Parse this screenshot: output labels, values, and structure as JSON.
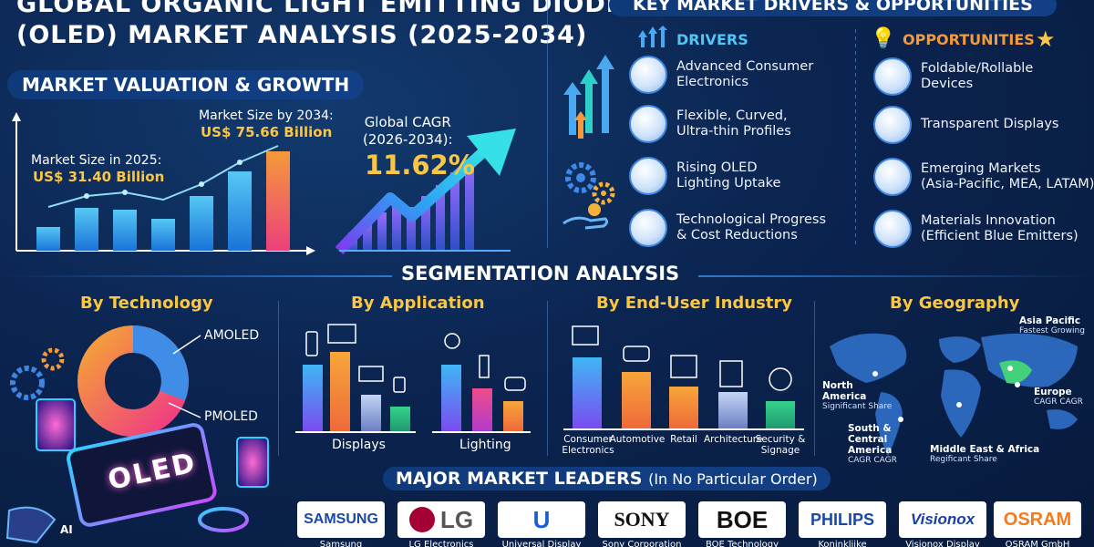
{
  "header": {
    "title_line1": "GLOBAL ORGANIC LIGHT EMITTING DIODE",
    "title_line2": "(OLED) MARKET ANALYSIS (2025-2034)"
  },
  "valuation": {
    "section_title": "MARKET VALUATION & GROWTH",
    "size_2025_label": "Market Size in 2025:",
    "size_2025_value": "US$ 31.40 Billion",
    "size_2034_label": "Market Size by 2034:",
    "size_2034_value": "US$ 75.66 Billion",
    "cagr_label_line1": "Global CAGR",
    "cagr_label_line2": "(2026-2034):",
    "cagr_value": "11.62%"
  },
  "drivers_section": {
    "section_title": "KEY MARKET DRIVERS & OPPORTUNITIES",
    "drivers_heading": "DRIVERS",
    "opportunities_heading": "OPPORTUNITIES",
    "drivers": [
      {
        "line1": "Advanced Consumer",
        "line2": "Electronics",
        "icon": "monitor-icon"
      },
      {
        "line1": "Flexible, Curved,",
        "line2": "Ultra-thin Profiles",
        "icon": "curved-screen-icon"
      },
      {
        "line1": "Rising OLED",
        "line2": "Lighting Uptake",
        "icon": "lightbulb-icon"
      },
      {
        "line1": "Technological Progress",
        "line2": "& Cost Reductions",
        "icon": "gear-hand-icon"
      }
    ],
    "opportunities": [
      {
        "line1": "Foldable/Rollable",
        "line2": "Devices",
        "icon": "foldable-icon"
      },
      {
        "line1": "Transparent Displays",
        "line2": "",
        "icon": "transparent-display-icon"
      },
      {
        "line1": "Emerging Markets",
        "line2": "(Asia-Pacific, MEA, LATAM)",
        "icon": "globe-icon"
      },
      {
        "line1": "Materials Innovation",
        "line2": "(Efficient Blue Emitters)",
        "icon": "molecule-box-icon"
      }
    ]
  },
  "segmentation": {
    "section_title": "SEGMENTATION ANALYSIS",
    "technology": {
      "heading": "By Technology",
      "labels": [
        "AMOLED",
        "PMOLED"
      ]
    },
    "application": {
      "heading": "By Application",
      "groups": [
        "Displays",
        "Lighting"
      ]
    },
    "end_user": {
      "heading": "By End-User Industry",
      "categories": [
        "Consumer\nElectronics",
        "Automotive",
        "Retail",
        "Architecture",
        "Security &\nSignage"
      ]
    },
    "geography": {
      "heading": "By Geography",
      "regions": [
        {
          "name": "Asia Pacific",
          "sub": "Fastest Growing"
        },
        {
          "name": "North\nAmerica",
          "sub": "Significant Share"
        },
        {
          "name": "Europe",
          "sub": "CAGR CAGR"
        },
        {
          "name": "South &\nCentral\nAmerica",
          "sub": "CAGR CAGR"
        },
        {
          "name": "Middle East & Africa",
          "sub": "Regificant Share"
        }
      ]
    }
  },
  "oled_label": "OLED",
  "ai_label": "AI",
  "leaders": {
    "title": "MAJOR MARKET LEADERS",
    "subtitle": "(In No Particular Order)",
    "companies": [
      {
        "logo": "SAMSUNG",
        "name": "Samsung"
      },
      {
        "logo": "LG",
        "name": "LG Electronics"
      },
      {
        "logo": "U",
        "name": "Universal Display"
      },
      {
        "logo": "SONY",
        "name": "Sony Corporation"
      },
      {
        "logo": "BOE",
        "name": "BOE Technology"
      },
      {
        "logo": "PHILIPS",
        "name": "Koninklijke"
      },
      {
        "logo": "Visionox",
        "name": "Visionox Display"
      },
      {
        "logo": "OSRAM",
        "name": "OSRAM GmbH"
      }
    ]
  },
  "colors": {
    "accent_yellow": "#f9c646",
    "accent_cyan": "#53c5f5",
    "accent_orange": "#f59a3a",
    "background": "#0b2450"
  }
}
